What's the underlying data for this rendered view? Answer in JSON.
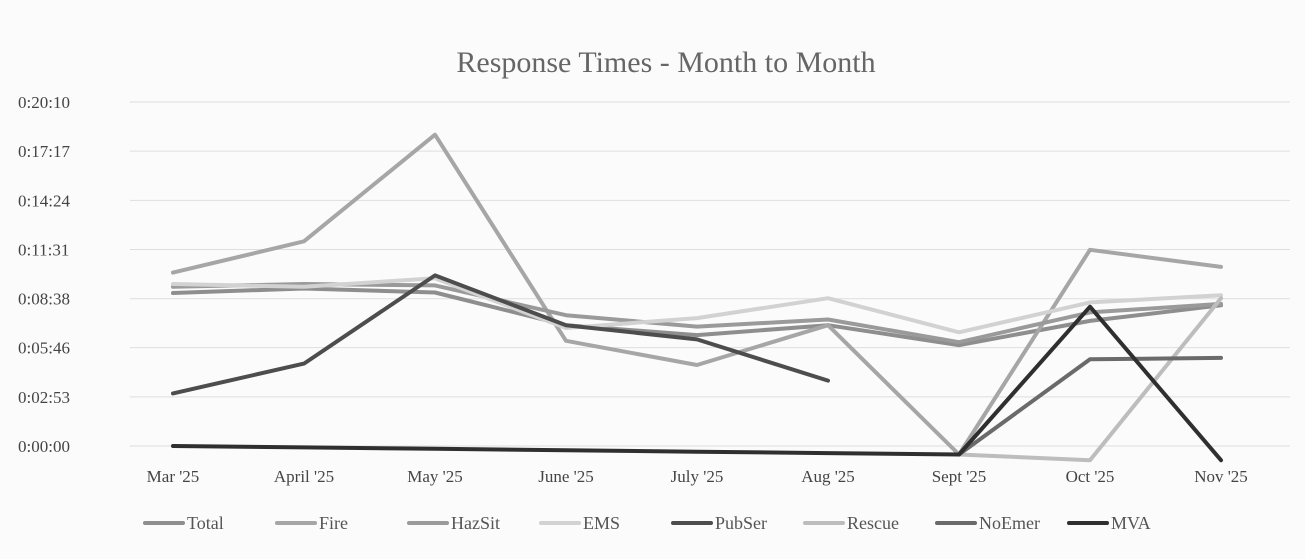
{
  "chart_data": {
    "type": "line",
    "title": "Response Times - Month to Month",
    "xlabel": "",
    "ylabel": "",
    "categories": [
      "Mar '25",
      "April '25",
      "May '25",
      "June '25",
      "July '25",
      "Aug '25",
      "Sept '25",
      "Oct '25",
      "Nov '25"
    ],
    "y_ticks": [
      "0:20:10",
      "0:17:17",
      "0:14:24",
      "0:11:31",
      "0:08:38",
      "0:05:46",
      "0:02:53",
      "0:00:00"
    ],
    "y_tick_seconds": [
      1210,
      1037,
      864,
      691,
      518,
      346,
      173,
      0
    ],
    "ylim_seconds": [
      0,
      1210
    ],
    "grid": true,
    "legend_position": "bottom",
    "series": [
      {
        "name": "Total",
        "color": "#8e8e8e",
        "values": [
          538,
          554,
          540,
          425,
          390,
          425,
          355,
          440,
          495
        ]
      },
      {
        "name": "Fire",
        "color": "#a6a6a6",
        "values": [
          610,
          720,
          1095,
          370,
          285,
          425,
          -30,
          690,
          630
        ]
      },
      {
        "name": "HazSit",
        "color": "#9a9a9a",
        "values": [
          560,
          570,
          565,
          460,
          420,
          445,
          365,
          470,
          500
        ]
      },
      {
        "name": "EMS",
        "color": "#d2d2d2",
        "values": [
          570,
          560,
          590,
          415,
          450,
          520,
          400,
          505,
          530
        ]
      },
      {
        "name": "PubSer",
        "color": "#4d4d4d",
        "values": [
          185,
          290,
          600,
          425,
          375,
          230,
          null,
          null,
          null
        ]
      },
      {
        "name": "Rescue",
        "color": "#bdbdbd",
        "values": [
          null,
          null,
          null,
          null,
          null,
          null,
          -30,
          -50,
          520
        ]
      },
      {
        "name": "NoEmer",
        "color": "#6a6a6a",
        "values": [
          null,
          null,
          null,
          null,
          null,
          null,
          -30,
          305,
          310
        ]
      },
      {
        "name": "MVA",
        "color": "#2f2f2f",
        "values": [
          0,
          -5,
          -10,
          -15,
          -20,
          -25,
          -30,
          490,
          -50
        ]
      }
    ]
  }
}
